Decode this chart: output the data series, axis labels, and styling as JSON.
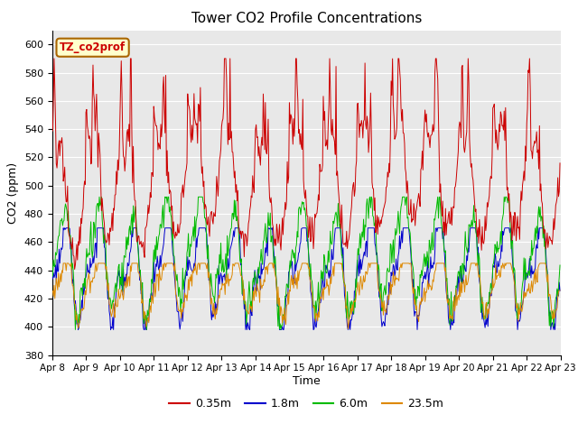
{
  "title": "Tower CO2 Profile Concentrations",
  "xlabel": "Time",
  "ylabel": "CO2 (ppm)",
  "ylim": [
    380,
    610
  ],
  "yticks": [
    380,
    400,
    420,
    440,
    460,
    480,
    500,
    520,
    540,
    560,
    580,
    600
  ],
  "label_box_text": "TZ_co2prof",
  "series": [
    {
      "label": "0.35m",
      "color": "#cc0000"
    },
    {
      "label": "1.8m",
      "color": "#0000cc"
    },
    {
      "label": "6.0m",
      "color": "#00bb00"
    },
    {
      "label": "23.5m",
      "color": "#dd8800"
    }
  ],
  "bg_color": "#e8e8e8",
  "fig_bg": "#ffffff",
  "grid_color": "#ffffff"
}
